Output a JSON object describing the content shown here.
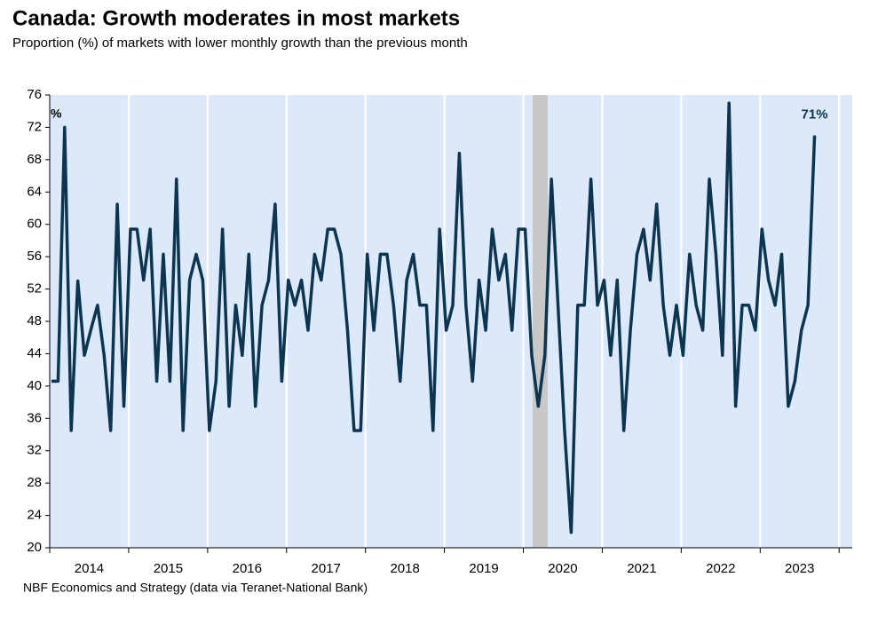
{
  "chart_data": {
    "type": "line",
    "title": "Canada: Growth moderates in most markets",
    "subtitle": "Proportion (%) of markets with lower monthly growth than the previous month",
    "source": "NBF Economics and Strategy (data via Teranet-National Bank)",
    "y_unit_label": "%",
    "end_label": "71%",
    "color": "#0d3550",
    "categories": [
      null,
      null,
      null,
      null,
      null,
      null,
      "2014",
      null,
      null,
      null,
      null,
      null,
      null,
      null,
      null,
      null,
      null,
      null,
      "2015",
      null,
      null,
      null,
      null,
      null,
      null,
      null,
      null,
      null,
      null,
      null,
      "2016",
      null,
      null,
      null,
      null,
      null,
      null,
      null,
      null,
      null,
      null,
      null,
      "2017",
      null,
      null,
      null,
      null,
      null,
      null,
      null,
      null,
      null,
      null,
      null,
      "2018",
      null,
      null,
      null,
      null,
      null,
      null,
      null,
      null,
      null,
      null,
      null,
      "2019",
      null,
      null,
      null,
      null,
      null,
      null,
      null,
      null,
      null,
      null,
      null,
      "2020",
      null,
      null,
      null,
      null,
      null,
      null,
      null,
      null,
      null,
      null,
      null,
      "2021",
      null,
      null,
      null,
      null,
      null,
      null,
      null,
      null,
      null,
      null,
      null,
      "2022",
      null,
      null,
      null,
      null,
      null,
      null,
      null,
      null,
      null,
      null,
      null,
      "2023",
      null,
      null
    ],
    "values": [
      40.6,
      40.6,
      72,
      34.5,
      53,
      43.8,
      47,
      50,
      43.8,
      34.5,
      62.5,
      37.5,
      59.4,
      59.4,
      53.1,
      59.4,
      40.6,
      56.3,
      40.6,
      65.6,
      34.5,
      53.1,
      56.3,
      53.1,
      34.5,
      40.6,
      59.4,
      37.5,
      50,
      43.8,
      56.3,
      37.5,
      50,
      53.1,
      62.5,
      40.6,
      53.1,
      50,
      53.1,
      46.9,
      56.3,
      53.1,
      59.4,
      59.4,
      56.3,
      46.9,
      34.5,
      34.5,
      56.3,
      46.9,
      56.3,
      56.3,
      50,
      40.6,
      53.1,
      56.3,
      50,
      50,
      34.5,
      59.4,
      46.9,
      50,
      68.8,
      50,
      40.6,
      53.1,
      46.9,
      59.4,
      53.1,
      56.3,
      46.9,
      59.4,
      59.4,
      43.8,
      37.5,
      43.8,
      65.6,
      50,
      34.5,
      21.9,
      50,
      50,
      65.6,
      50,
      53.1,
      43.8,
      53.1,
      34.5,
      46.9,
      56.3,
      59.4,
      53.1,
      62.5,
      50,
      43.8,
      50,
      43.8,
      56.3,
      50,
      46.9,
      65.6,
      56.3,
      43.8,
      75,
      37.5,
      50,
      50,
      46.9,
      59.4,
      53.1,
      50,
      56.3,
      37.5,
      40.6,
      46.9,
      50,
      71
    ],
    "ylim": [
      20,
      76
    ],
    "yticks": [
      20,
      24,
      28,
      32,
      36,
      40,
      44,
      48,
      52,
      56,
      60,
      64,
      68,
      72,
      76
    ]
  }
}
